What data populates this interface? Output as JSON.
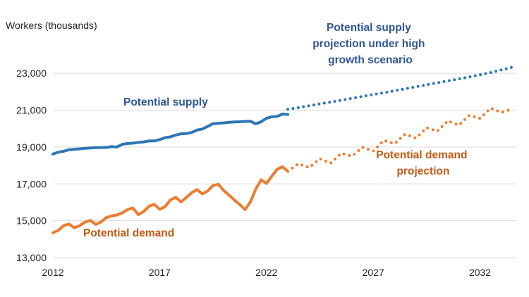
{
  "chart_data": {
    "type": "line",
    "ylabel": "Workers (thousands)",
    "xlim": [
      2012,
      2033.7
    ],
    "ylim": [
      13000,
      24000
    ],
    "x_ticks": [
      "2012",
      "2017",
      "2022",
      "2027",
      "2032"
    ],
    "y_ticks": [
      "13,000",
      "15,000",
      "17,000",
      "19,000",
      "21,000",
      "23,000"
    ],
    "grid": "horizontal",
    "colors": {
      "supply": "#2E75B6",
      "supply_label": "#2F5597",
      "demand": "#ED7D31",
      "demand_label": "#C55A11",
      "grid": "#D9D9D9"
    },
    "annotations": {
      "supply": "Potential supply",
      "supply_projection": [
        "Potential supply",
        "projection under high",
        "growth scenario"
      ],
      "demand": "Potential demand",
      "demand_projection": [
        "Potential demand",
        "projection"
      ]
    },
    "series": [
      {
        "key": "supply",
        "style": "solid",
        "x": [
          2012.0,
          2012.25,
          2012.5,
          2012.75,
          2013.0,
          2013.25,
          2013.5,
          2013.75,
          2014.0,
          2014.25,
          2014.5,
          2014.75,
          2015.0,
          2015.25,
          2015.5,
          2015.75,
          2016.0,
          2016.25,
          2016.5,
          2016.75,
          2017.0,
          2017.25,
          2017.5,
          2017.75,
          2018.0,
          2018.25,
          2018.5,
          2018.75,
          2019.0,
          2019.25,
          2019.5,
          2019.75,
          2020.0,
          2020.25,
          2020.5,
          2020.75,
          2021.0,
          2021.25,
          2021.5,
          2021.75,
          2022.0,
          2022.25,
          2022.5,
          2022.75,
          2023.0
        ],
        "values": [
          18620,
          18720,
          18770,
          18850,
          18880,
          18900,
          18930,
          18950,
          18970,
          18970,
          18980,
          19020,
          19000,
          19150,
          19190,
          19210,
          19250,
          19280,
          19330,
          19330,
          19400,
          19510,
          19550,
          19650,
          19720,
          19730,
          19790,
          19920,
          19980,
          20120,
          20270,
          20290,
          20310,
          20340,
          20360,
          20370,
          20390,
          20400,
          20260,
          20370,
          20560,
          20640,
          20660,
          20790,
          20760
        ]
      },
      {
        "key": "supply_projection",
        "style": "dotted",
        "x": [
          2023.0,
          2023.5,
          2024.5,
          2025.5,
          2026.5,
          2027.5,
          2028.5,
          2029.5,
          2030.5,
          2031.5,
          2032.5,
          2033.5
        ],
        "values": [
          21050,
          21140,
          21340,
          21540,
          21750,
          21950,
          22160,
          22380,
          22590,
          22800,
          23040,
          23330
        ]
      },
      {
        "key": "demand",
        "style": "solid",
        "x": [
          2012.0,
          2012.25,
          2012.5,
          2012.75,
          2013.0,
          2013.25,
          2013.5,
          2013.75,
          2014.0,
          2014.25,
          2014.5,
          2014.75,
          2015.0,
          2015.25,
          2015.5,
          2015.75,
          2016.0,
          2016.25,
          2016.5,
          2016.75,
          2017.0,
          2017.25,
          2017.5,
          2017.75,
          2018.0,
          2018.25,
          2018.5,
          2018.75,
          2019.0,
          2019.25,
          2019.5,
          2019.75,
          2020.0,
          2020.25,
          2020.5,
          2020.75,
          2021.0,
          2021.25,
          2021.5,
          2021.75,
          2022.0,
          2022.25,
          2022.5,
          2022.75,
          2023.0
        ],
        "values": [
          14350,
          14480,
          14730,
          14820,
          14620,
          14730,
          14920,
          15020,
          14800,
          14930,
          15170,
          15270,
          15310,
          15430,
          15610,
          15690,
          15330,
          15500,
          15780,
          15890,
          15620,
          15760,
          16130,
          16270,
          16020,
          16260,
          16520,
          16690,
          16460,
          16620,
          16910,
          16980,
          16640,
          16380,
          16120,
          15880,
          15600,
          16030,
          16720,
          17220,
          17020,
          17420,
          17790,
          17930,
          17680
        ]
      },
      {
        "key": "demand_projection",
        "style": "dotted",
        "x": [
          2023.0,
          2023.5,
          2024.0,
          2024.5,
          2025.0,
          2025.5,
          2026.0,
          2026.5,
          2027.0,
          2027.5,
          2028.0,
          2028.5,
          2029.0,
          2029.5,
          2030.0,
          2030.5,
          2031.0,
          2031.5,
          2032.0,
          2032.5,
          2033.0,
          2033.5
        ],
        "values": [
          17680,
          18100,
          17880,
          18370,
          18120,
          18660,
          18500,
          18990,
          18780,
          19360,
          19180,
          19700,
          19480,
          20050,
          19860,
          20420,
          20180,
          20720,
          20550,
          21110,
          20870,
          21070
        ]
      }
    ]
  }
}
